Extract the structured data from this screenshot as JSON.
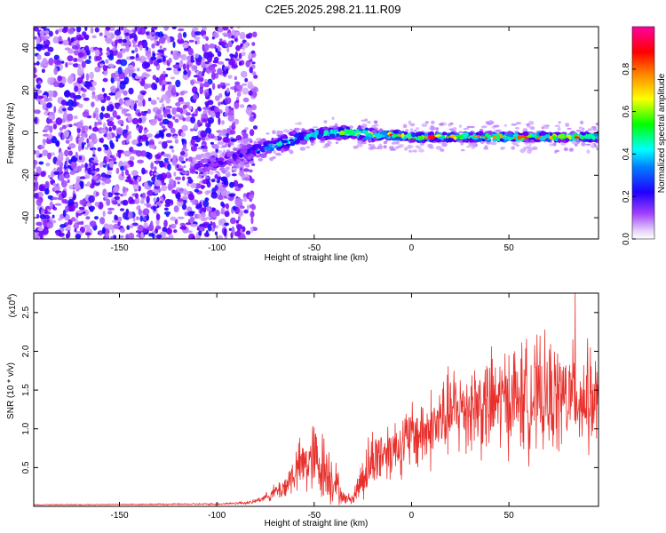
{
  "title": "C2E5.2025.298.21.11.R09",
  "chart_data": [
    {
      "type": "heatmap",
      "title": "C2E5.2025.298.21.11.R09",
      "xlabel": "Height of straight line (km)",
      "ylabel": "Frequency (Hz)",
      "xlim": [
        -194,
        96
      ],
      "ylim": [
        -50,
        50
      ],
      "xticks": [
        -150,
        -100,
        -50,
        0,
        50
      ],
      "yticks": [
        -40,
        -20,
        0,
        20,
        40
      ],
      "xticklabels": [
        "-150",
        "-100",
        "-50",
        "0",
        "50"
      ],
      "yticklabels": [
        "-40",
        "-20",
        "0",
        "20",
        "40"
      ],
      "colorbar": {
        "label": "Normalized spectral amplitude",
        "range": [
          0,
          1
        ],
        "ticks": [
          0.0,
          0.2,
          0.4,
          0.6,
          0.8
        ],
        "ticklabels": [
          "0.0",
          "0.2",
          "0.4",
          "0.6",
          "0.8"
        ],
        "colormap": [
          "#e8d8f8",
          "#7a00ff",
          "#0000ff",
          "#00ffff",
          "#00ff00",
          "#ffff00",
          "#ff8000",
          "#ff0000",
          "#ff00a0"
        ]
      },
      "ridge": {
        "description": "dominant-frequency track",
        "x": [
          -110,
          -100,
          -90,
          -80,
          -70,
          -60,
          -50,
          -40,
          -30,
          -20,
          -10,
          0,
          20,
          40,
          60,
          80,
          94
        ],
        "y": [
          -16,
          -14,
          -11,
          -8,
          -6,
          -3,
          -1,
          0,
          0,
          -1,
          -1,
          -2,
          -2,
          -2,
          -2,
          -2,
          -2
        ],
        "amplitude": [
          0.25,
          0.25,
          0.28,
          0.35,
          0.45,
          0.5,
          0.55,
          0.6,
          0.75,
          0.85,
          0.9,
          0.95,
          0.95,
          0.95,
          0.9,
          0.9,
          0.85
        ]
      },
      "noise_region": {
        "x_from": -194,
        "x_to": -80,
        "amplitude_range": [
          0.05,
          0.3
        ]
      }
    },
    {
      "type": "line",
      "xlabel": "Height of straight line (km)",
      "ylabel": "SNR (10 * v/v)",
      "yunit": "(x10^4)",
      "yunit_base": "(x10",
      "yunit_exp": "4",
      "yunit_close": ")",
      "xlim": [
        -194,
        96
      ],
      "ylim": [
        0,
        2.75
      ],
      "xticks": [
        -150,
        -100,
        -50,
        0,
        50
      ],
      "yticks": [
        0.5,
        1.0,
        1.5,
        2.0,
        2.5
      ],
      "xticklabels": [
        "-150",
        "-100",
        "-50",
        "0",
        "50"
      ],
      "yticklabels": [
        "0.5",
        "1.0",
        "1.5",
        "2.0",
        "2.5"
      ],
      "color": "#e8302c",
      "envelope": {
        "x": [
          -194,
          -100,
          -82,
          -75,
          -65,
          -60,
          -55,
          -50,
          -45,
          -40,
          -35,
          -30,
          -25,
          -20,
          -15,
          -10,
          -5,
          0,
          10,
          20,
          30,
          40,
          50,
          60,
          70,
          80,
          90,
          96
        ],
        "center": [
          0.02,
          0.03,
          0.05,
          0.12,
          0.25,
          0.45,
          0.55,
          0.6,
          0.5,
          0.35,
          0.1,
          0.1,
          0.4,
          0.6,
          0.7,
          0.75,
          0.8,
          0.9,
          1.0,
          1.2,
          1.3,
          1.3,
          1.4,
          1.4,
          1.4,
          1.4,
          1.4,
          1.3
        ],
        "spread": [
          0.005,
          0.01,
          0.02,
          0.04,
          0.15,
          0.25,
          0.35,
          0.45,
          0.4,
          0.3,
          0.06,
          0.06,
          0.3,
          0.35,
          0.35,
          0.35,
          0.35,
          0.4,
          0.45,
          0.5,
          0.55,
          0.6,
          0.6,
          0.65,
          0.65,
          0.6,
          0.6,
          0.55
        ]
      },
      "peak": {
        "x": 84,
        "y": 2.75
      }
    }
  ]
}
